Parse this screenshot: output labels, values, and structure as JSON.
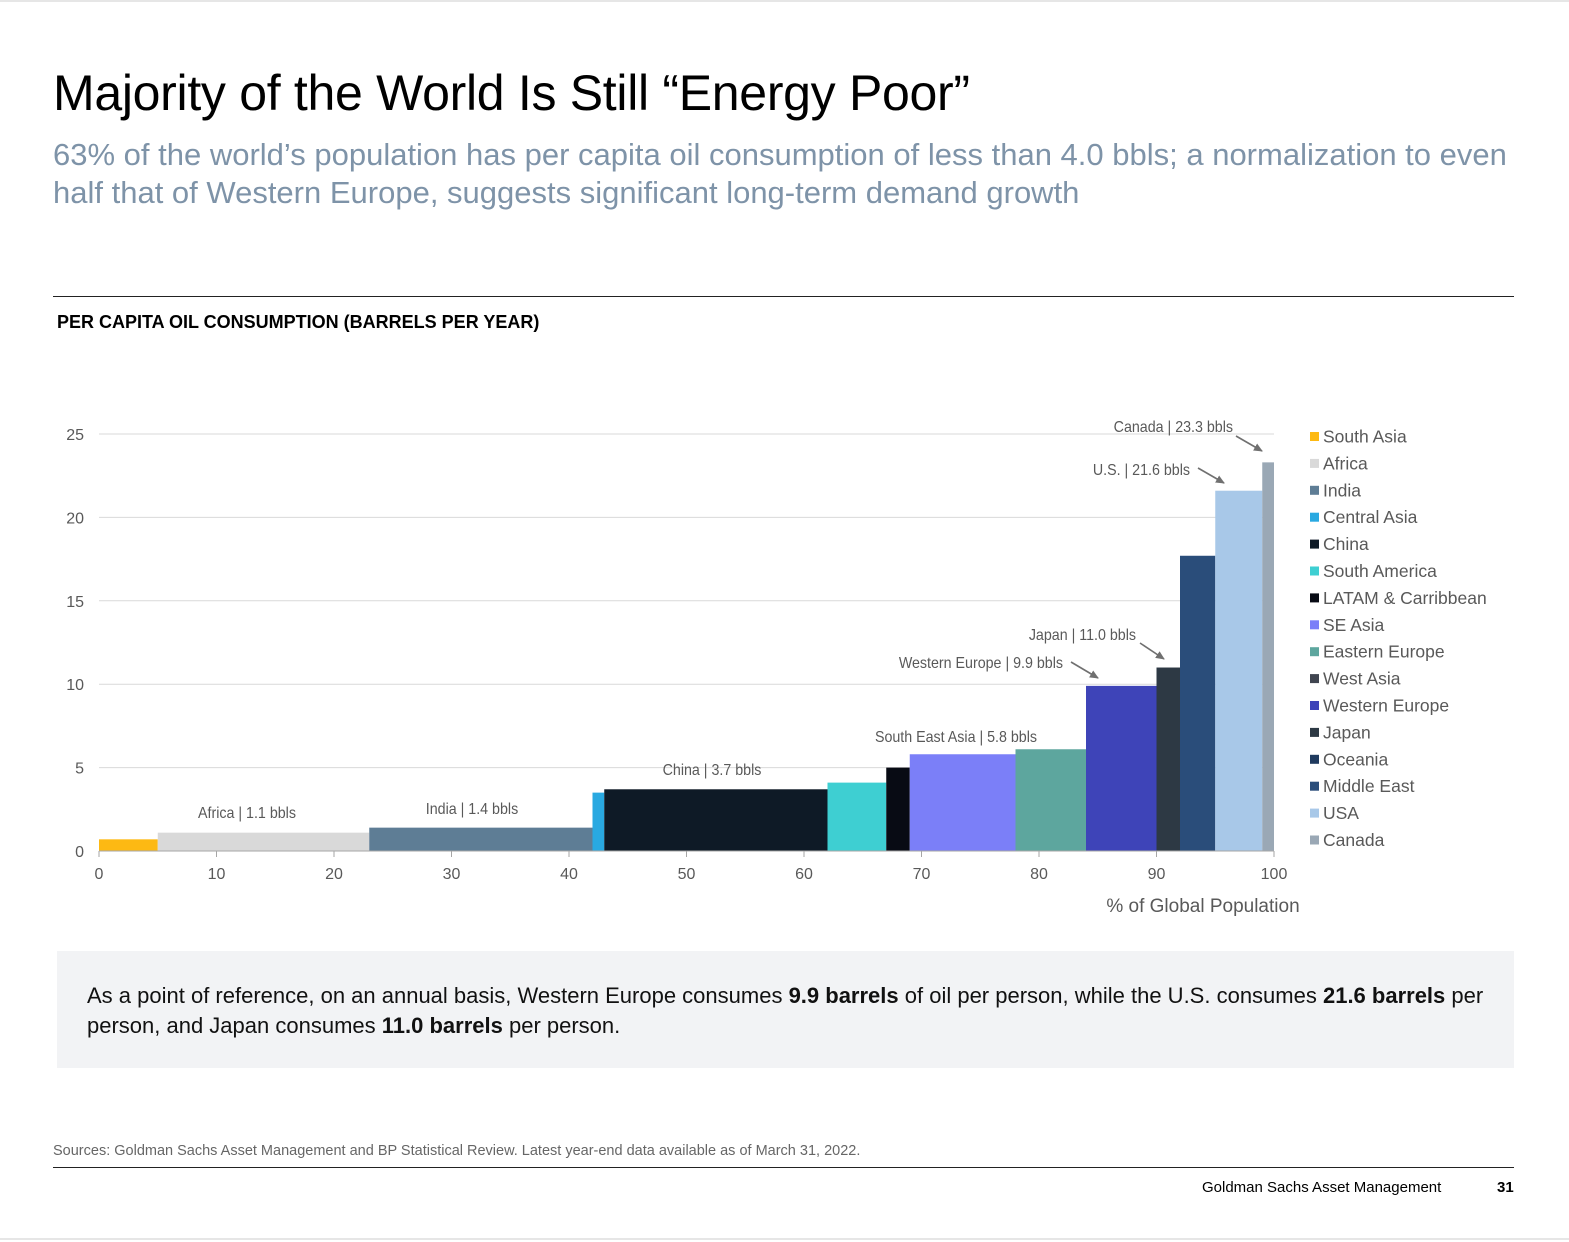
{
  "header": {
    "title": "Majority of the World Is Still “Energy Poor”",
    "subtitle": "63% of the world’s population has per capita oil consumption of less than 4.0 bbls; a normalization to even half that of Western Europe, suggests significant long-term demand growth"
  },
  "chart_data": {
    "type": "bar",
    "variant": "variable-width",
    "title": "PER CAPITA OIL CONSUMPTION (BARRELS PER YEAR)",
    "xlabel": "% of Global Population",
    "ylabel": "",
    "xlim": [
      0,
      100
    ],
    "ylim": [
      0,
      25
    ],
    "xticks": [
      0,
      10,
      20,
      30,
      40,
      50,
      60,
      70,
      80,
      90,
      100
    ],
    "yticks": [
      0,
      5,
      10,
      15,
      20,
      25
    ],
    "grid": true,
    "legend_position": "right",
    "series": [
      {
        "name": "South Asia",
        "x_start": 0,
        "x_end": 5,
        "value": 0.7,
        "color": "#fdb913"
      },
      {
        "name": "Africa",
        "x_start": 5,
        "x_end": 23,
        "value": 1.1,
        "color": "#d9d9d9"
      },
      {
        "name": "India",
        "x_start": 23,
        "x_end": 42,
        "value": 1.4,
        "color": "#5e7d95"
      },
      {
        "name": "Central Asia",
        "x_start": 42,
        "x_end": 43,
        "value": 3.5,
        "color": "#29a9e1"
      },
      {
        "name": "China",
        "x_start": 43,
        "x_end": 62,
        "value": 3.7,
        "color": "#0e1a26"
      },
      {
        "name": "South America",
        "x_start": 62,
        "x_end": 67,
        "value": 4.1,
        "color": "#3ecfd2"
      },
      {
        "name": "LATAM & Carribbean",
        "x_start": 67,
        "x_end": 69,
        "value": 5.0,
        "color": "#080b14"
      },
      {
        "name": "SE Asia",
        "x_start": 69,
        "x_end": 78,
        "value": 5.8,
        "color": "#7b7ff8"
      },
      {
        "name": "Eastern Europe",
        "x_start": 78,
        "x_end": 84,
        "value": 6.1,
        "color": "#5da69e"
      },
      {
        "name": "West Asia",
        "x_start": 84,
        "x_end": 84,
        "value": 6.1,
        "color": "#404550"
      },
      {
        "name": "Western Europe",
        "x_start": 84,
        "x_end": 90,
        "value": 9.9,
        "color": "#3e44b8"
      },
      {
        "name": "Japan",
        "x_start": 90,
        "x_end": 92,
        "value": 11.0,
        "color": "#2d3944"
      },
      {
        "name": "Oceania",
        "x_start": 92,
        "x_end": 92,
        "value": 11.0,
        "color": "#1f3a5e"
      },
      {
        "name": "Middle East",
        "x_start": 92,
        "x_end": 95,
        "value": 17.7,
        "color": "#2a4d7a"
      },
      {
        "name": "USA",
        "x_start": 95,
        "x_end": 99,
        "value": 21.6,
        "color": "#a8c8e8"
      },
      {
        "name": "Canada",
        "x_start": 99,
        "x_end": 100,
        "value": 23.3,
        "color": "#9aa8b5"
      }
    ],
    "annotations": [
      {
        "text": "Africa | 1.1 bbls",
        "series": "Africa"
      },
      {
        "text": "India | 1.4 bbls",
        "series": "India"
      },
      {
        "text": "China | 3.7 bbls",
        "series": "China"
      },
      {
        "text": "South East Asia | 5.8 bbls",
        "series": "SE Asia"
      },
      {
        "text": "Western Europe | 9.9 bbls",
        "series": "Western Europe",
        "arrow": true
      },
      {
        "text": "Japan | 11.0 bbls",
        "series": "Japan",
        "arrow": true
      },
      {
        "text": "U.S. | 21.6 bbls",
        "series": "USA",
        "arrow": true
      },
      {
        "text": "Canada | 23.3 bbls",
        "series": "Canada",
        "arrow": true
      }
    ]
  },
  "note": {
    "text_1": "As a point of reference, on an annual basis, Western Europe consumes ",
    "bold_1": "9.9 barrels",
    "text_2": " of oil per person, while the U.S. consumes ",
    "bold_2": "21.6 barrels",
    "text_3": " per person, and Japan consumes ",
    "bold_3": "11.0 barrels",
    "text_4": " per person."
  },
  "footer": {
    "sources": "Sources: Goldman Sachs Asset Management and BP Statistical Review. Latest year-end data available as of March 31, 2022.",
    "brand": "Goldman Sachs Asset Management",
    "page_number": "31"
  }
}
